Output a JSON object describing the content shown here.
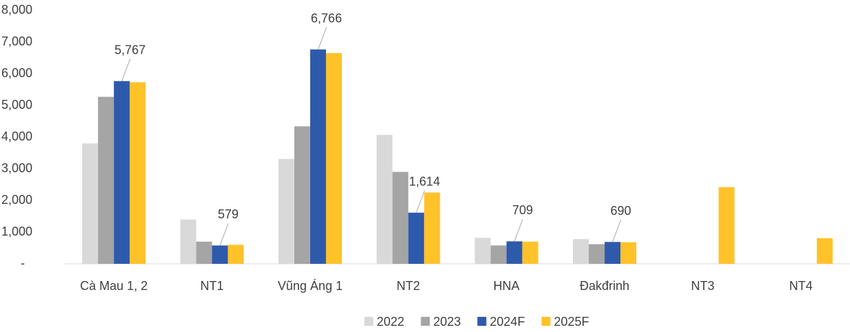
{
  "chart_data": {
    "type": "bar",
    "categories": [
      "Cà Mau 1, 2",
      "NT1",
      "Vũng Áng 1",
      "NT2",
      "HNA",
      "Đakđrinh",
      "NT3",
      "NT4"
    ],
    "series": [
      {
        "name": "2022",
        "color": "#d9d9d9",
        "values": [
          3800,
          1400,
          3310,
          4070,
          820,
          780,
          null,
          null
        ]
      },
      {
        "name": "2023",
        "color": "#a5a5a5",
        "values": [
          5270,
          700,
          4340,
          2900,
          580,
          620,
          null,
          null
        ]
      },
      {
        "name": "2024F",
        "color": "#2e5aac",
        "values": [
          5767,
          579,
          6766,
          1614,
          709,
          690,
          null,
          null
        ],
        "value_labels": [
          "5,767",
          "579",
          "6,766",
          "1,614",
          "709",
          "690",
          null,
          null
        ]
      },
      {
        "name": "2025F",
        "color": "#ffc229",
        "values": [
          5730,
          600,
          6650,
          2250,
          700,
          680,
          2420,
          810
        ]
      }
    ],
    "ylim": [
      0,
      8000
    ],
    "yticks": [
      {
        "value": 0,
        "label": "-"
      },
      {
        "value": 1000,
        "label": "1,000"
      },
      {
        "value": 2000,
        "label": "2,000"
      },
      {
        "value": 3000,
        "label": "3,000"
      },
      {
        "value": 4000,
        "label": "4,000"
      },
      {
        "value": 5000,
        "label": "5,000"
      },
      {
        "value": 6000,
        "label": "6,000"
      },
      {
        "value": 7000,
        "label": "7,000"
      },
      {
        "value": 8000,
        "label": "8,000"
      }
    ],
    "grid": false,
    "legend": "bottom"
  }
}
